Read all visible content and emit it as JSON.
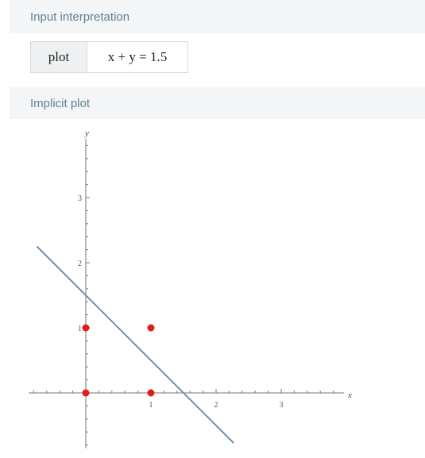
{
  "pods": {
    "input_title": "Input interpretation",
    "input_label": "plot",
    "input_expression": "x + y = 1.5",
    "plot_title": "Implicit plot"
  },
  "colors": {
    "header_bg": "#f4f5f6",
    "header_text": "#5e7f93",
    "line": "#6f8db8",
    "points": "#e5191e",
    "axes": "#777777"
  },
  "chart_data": {
    "type": "line",
    "title": "",
    "xlabel": "x",
    "ylabel": "y",
    "xlim": [
      -0.85,
      3.9
    ],
    "ylim": [
      -0.85,
      4.0
    ],
    "x_ticks": [
      1,
      2,
      3
    ],
    "y_ticks": [
      1,
      2,
      3
    ],
    "grid": false,
    "series": [
      {
        "type": "line",
        "x": [
          -0.75,
          2.27
        ],
        "y": [
          2.25,
          -0.77
        ]
      }
    ],
    "points": [
      {
        "x": 0,
        "y": 0
      },
      {
        "x": 0,
        "y": 1
      },
      {
        "x": 1,
        "y": 0
      },
      {
        "x": 1,
        "y": 1
      }
    ]
  }
}
